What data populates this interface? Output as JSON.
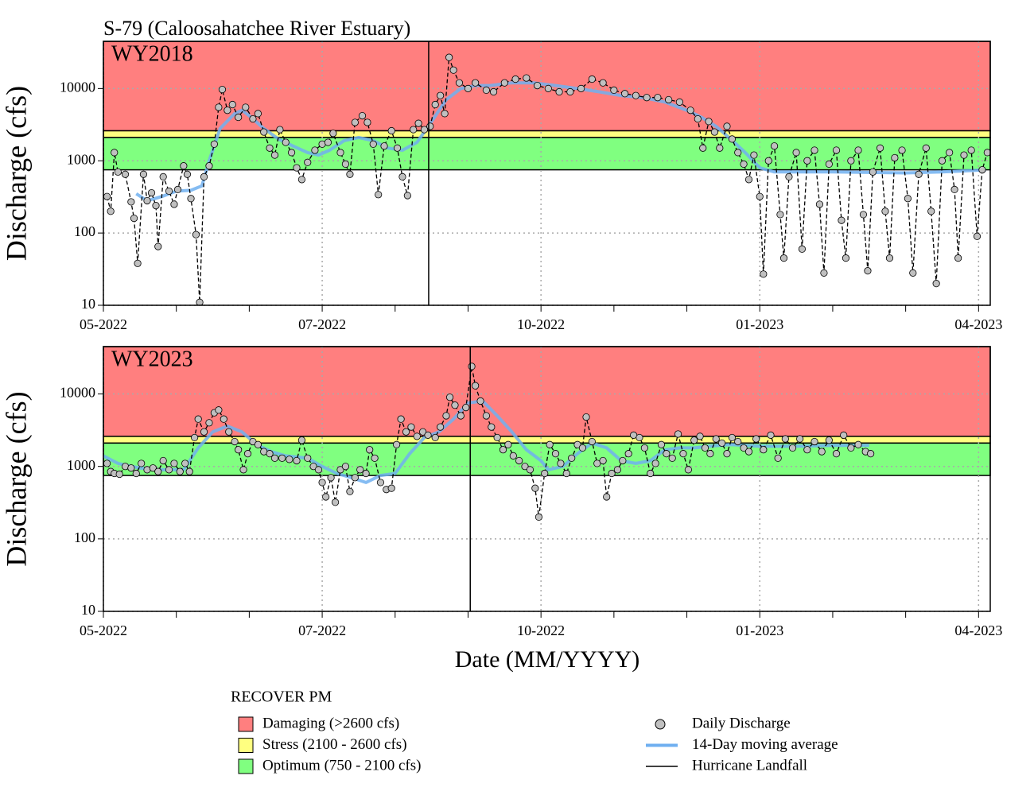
{
  "title": "S-79 (Caloosahatchee River Estuary)",
  "x_label": "Date (MM/YYYY)",
  "legend": {
    "title": "RECOVER PM",
    "bands": [
      {
        "label": "Damaging (>2600 cfs)",
        "lower": 2600,
        "color": "#ff7f7f"
      },
      {
        "label": "Stress (2100 - 2600 cfs)",
        "lower": 2100,
        "upper": 2600,
        "color": "#ffff80"
      },
      {
        "label": "Optimum (750 - 2100 cfs)",
        "lower": 750,
        "upper": 2100,
        "color": "#80ff80"
      }
    ],
    "hurricane_label": "Hurricane Landfall",
    "hurricane_color": "#000000"
  },
  "chart_data": [
    {
      "type": "scatter",
      "panel_label": "WY2018",
      "y_label": "Discharge (cfs)",
      "log_y": true,
      "grid": true,
      "xlim": [
        0,
        12.16
      ],
      "ylim": [
        10,
        45000
      ],
      "xticks": [
        {
          "value": 0,
          "label": "05-2022"
        },
        {
          "value": 3,
          "label": "07-2022"
        },
        {
          "value": 6,
          "label": "10-2022"
        },
        {
          "value": 9,
          "label": "01-2023"
        },
        {
          "value": 12,
          "label": "04-2023"
        }
      ],
      "xminorticks": [
        1,
        2,
        4,
        5,
        7,
        8,
        10,
        11
      ],
      "yticks": [
        10,
        100,
        1000,
        10000
      ],
      "hurricane_x": 4.46,
      "series": [
        {
          "name": "Daily Discharge",
          "color": "#c0c0c0",
          "line": "dashed",
          "x": [
            0.05,
            0.1,
            0.15,
            0.2,
            0.3,
            0.38,
            0.42,
            0.47,
            0.55,
            0.6,
            0.66,
            0.72,
            0.75,
            0.82,
            0.9,
            0.97,
            1.02,
            1.1,
            1.15,
            1.2,
            1.27,
            1.32,
            1.38,
            1.45,
            1.52,
            1.58,
            1.63,
            1.7,
            1.77,
            1.85,
            1.95,
            2.05,
            2.12,
            2.2,
            2.28,
            2.35,
            2.42,
            2.5,
            2.58,
            2.65,
            2.72,
            2.8,
            2.9,
            3.0,
            3.08,
            3.15,
            3.25,
            3.32,
            3.38,
            3.45,
            3.55,
            3.62,
            3.7,
            3.77,
            3.85,
            3.95,
            4.03,
            4.1,
            4.17,
            4.25,
            4.32,
            4.4,
            4.48,
            4.55,
            4.62,
            4.68,
            4.74,
            4.8,
            4.88,
            5.0,
            5.1,
            5.25,
            5.35,
            5.5,
            5.65,
            5.8,
            5.95,
            6.1,
            6.25,
            6.4,
            6.55,
            6.7,
            6.85,
            7.0,
            7.15,
            7.3,
            7.45,
            7.6,
            7.75,
            7.9,
            8.05,
            8.15,
            8.22,
            8.3,
            8.38,
            8.45,
            8.55,
            8.62,
            8.7,
            8.78,
            8.85,
            8.92,
            9.0,
            9.05,
            9.12,
            9.2,
            9.28,
            9.33,
            9.4,
            9.5,
            9.58,
            9.65,
            9.75,
            9.82,
            9.88,
            9.95,
            10.05,
            10.12,
            10.18,
            10.25,
            10.35,
            10.42,
            10.48,
            10.55,
            10.65,
            10.72,
            10.78,
            10.85,
            10.95,
            11.03,
            11.1,
            11.18,
            11.28,
            11.35,
            11.42,
            11.5,
            11.6,
            11.67,
            11.72,
            11.8,
            11.9,
            11.98,
            12.05,
            12.12
          ],
          "values": [
            320,
            200,
            1300,
            700,
            650,
            270,
            160,
            38,
            650,
            280,
            360,
            240,
            65,
            600,
            380,
            250,
            400,
            850,
            650,
            300,
            95,
            11,
            600,
            850,
            1700,
            5500,
            9700,
            5000,
            6000,
            4000,
            5500,
            3800,
            4500,
            2500,
            1500,
            1200,
            2700,
            1800,
            1300,
            800,
            550,
            950,
            1400,
            1700,
            1800,
            2400,
            1300,
            900,
            650,
            3400,
            4200,
            3400,
            1700,
            340,
            1600,
            2600,
            1500,
            600,
            330,
            2700,
            3300,
            2700,
            3000,
            6000,
            8000,
            4500,
            27000,
            18000,
            12000,
            10000,
            12000,
            9500,
            9000,
            12000,
            13500,
            14000,
            11000,
            10000,
            9000,
            9000,
            10000,
            13500,
            12000,
            9500,
            8500,
            8000,
            7500,
            7500,
            7000,
            6500,
            5000,
            3800,
            1500,
            3500,
            2500,
            1500,
            3000,
            2000,
            1300,
            900,
            550,
            1200,
            320,
            27,
            1000,
            1600,
            180,
            45,
            600,
            1300,
            60,
            1000,
            1400,
            250,
            28,
            900,
            1400,
            150,
            45,
            1000,
            1400,
            180,
            30,
            700,
            1500,
            200,
            45,
            1100,
            1400,
            300,
            28,
            650,
            1500,
            200,
            20,
            1000,
            1300,
            400,
            45,
            1200,
            1400,
            90,
            750,
            1300
          ]
        },
        {
          "name": "14-Day moving average",
          "color": "#70b0f0",
          "line_width": 4,
          "x": [
            0.45,
            0.6,
            0.8,
            1.0,
            1.2,
            1.35,
            1.45,
            1.6,
            1.8,
            1.9,
            2.0,
            2.2,
            2.4,
            2.6,
            2.8,
            2.95,
            3.1,
            3.3,
            3.5,
            3.7,
            3.9,
            4.1,
            4.3,
            4.5,
            4.7,
            4.9,
            5.1,
            5.3,
            5.6,
            5.9,
            6.2,
            6.5,
            6.8,
            7.1,
            7.4,
            7.7,
            8.0,
            8.2,
            8.4,
            8.6,
            8.8,
            9.0,
            9.2,
            9.5,
            10.0,
            10.5,
            11.0,
            11.5,
            12.1
          ],
          "values": [
            350,
            280,
            320,
            380,
            390,
            450,
            1000,
            2800,
            4500,
            5000,
            4200,
            2800,
            2000,
            1600,
            1300,
            1200,
            1400,
            1900,
            2100,
            1900,
            1500,
            1400,
            1800,
            3500,
            7000,
            10000,
            11000,
            11000,
            12000,
            12000,
            11000,
            10000,
            9000,
            8000,
            7500,
            6500,
            5000,
            4000,
            3000,
            2000,
            1300,
            800,
            700,
            700,
            700,
            690,
            680,
            700,
            750
          ]
        }
      ]
    },
    {
      "type": "scatter",
      "panel_label": "WY2023",
      "y_label": "Discharge (cfs)",
      "log_y": true,
      "grid": true,
      "xlim": [
        0,
        12.16
      ],
      "ylim": [
        10,
        45000
      ],
      "xticks": [
        {
          "value": 0,
          "label": "05-2022"
        },
        {
          "value": 3,
          "label": "07-2022"
        },
        {
          "value": 6,
          "label": "10-2022"
        },
        {
          "value": 9,
          "label": "01-2023"
        },
        {
          "value": 12,
          "label": "04-2023"
        }
      ],
      "xminorticks": [
        1,
        2,
        4,
        5,
        7,
        8,
        10,
        11
      ],
      "yticks": [
        10,
        100,
        1000,
        10000
      ],
      "hurricane_x": 5.03,
      "series": [
        {
          "name": "Daily Discharge",
          "color": "#c0c0c0",
          "line": "dashed",
          "x": [
            0.05,
            0.1,
            0.15,
            0.22,
            0.3,
            0.38,
            0.45,
            0.52,
            0.6,
            0.68,
            0.75,
            0.82,
            0.9,
            0.97,
            1.05,
            1.12,
            1.18,
            1.25,
            1.3,
            1.38,
            1.45,
            1.52,
            1.58,
            1.65,
            1.72,
            1.8,
            1.85,
            1.92,
            1.98,
            2.05,
            2.12,
            2.2,
            2.28,
            2.35,
            2.45,
            2.55,
            2.65,
            2.72,
            2.8,
            2.88,
            2.95,
            3.0,
            3.05,
            3.12,
            3.18,
            3.25,
            3.32,
            3.38,
            3.45,
            3.52,
            3.6,
            3.65,
            3.72,
            3.8,
            3.88,
            3.95,
            4.02,
            4.08,
            4.15,
            4.22,
            4.3,
            4.38,
            4.45,
            4.55,
            4.62,
            4.7,
            4.75,
            4.82,
            4.9,
            4.97,
            5.05,
            5.1,
            5.17,
            5.25,
            5.32,
            5.4,
            5.48,
            5.55,
            5.62,
            5.7,
            5.78,
            5.85,
            5.92,
            5.97,
            6.05,
            6.12,
            6.2,
            6.27,
            6.35,
            6.42,
            6.5,
            6.57,
            6.62,
            6.7,
            6.77,
            6.85,
            6.9,
            6.97,
            7.05,
            7.12,
            7.2,
            7.27,
            7.35,
            7.42,
            7.5,
            7.57,
            7.65,
            7.72,
            7.8,
            7.88,
            7.95,
            8.02,
            8.1,
            8.18,
            8.25,
            8.32,
            8.4,
            8.48,
            8.55,
            8.62,
            8.7,
            8.78,
            8.85,
            8.95,
            9.05,
            9.15,
            9.25,
            9.35,
            9.45,
            9.55,
            9.65,
            9.75,
            9.85,
            9.95,
            10.05,
            10.15,
            10.25,
            10.35,
            10.45,
            10.52
          ],
          "values": [
            1100,
            850,
            800,
            780,
            1000,
            950,
            800,
            1100,
            900,
            950,
            850,
            1200,
            900,
            1100,
            850,
            1100,
            850,
            2500,
            4500,
            3000,
            4000,
            5500,
            6000,
            4500,
            3000,
            2200,
            1700,
            900,
            1500,
            2200,
            2000,
            1600,
            1500,
            1300,
            1300,
            1250,
            1200,
            2300,
            1300,
            1000,
            900,
            600,
            380,
            700,
            320,
            900,
            1000,
            450,
            700,
            900,
            800,
            1700,
            1300,
            600,
            480,
            500,
            2000,
            4500,
            3000,
            3500,
            2600,
            3000,
            2700,
            2500,
            3500,
            5000,
            9000,
            7000,
            5000,
            6500,
            24000,
            13000,
            8000,
            5000,
            3500,
            2500,
            1700,
            2000,
            1400,
            1200,
            1000,
            900,
            500,
            200,
            800,
            2000,
            1500,
            1100,
            800,
            1300,
            2000,
            1800,
            4800,
            2200,
            1100,
            1200,
            380,
            800,
            900,
            1200,
            1500,
            2700,
            2500,
            1800,
            800,
            1100,
            2000,
            1500,
            1300,
            2800,
            1500,
            900,
            2300,
            2600,
            1800,
            1500,
            2400,
            2100,
            1500,
            2500,
            2200,
            1800,
            1600,
            2400,
            1700,
            2700,
            1300,
            2400,
            1800,
            2400,
            1700,
            2200,
            1600,
            2300,
            1500,
            2700,
            1800,
            2000,
            1600,
            1500
          ]
        },
        {
          "name": "14-Day moving average",
          "color": "#70b0f0",
          "line_width": 4,
          "x": [
            0.0,
            0.2,
            0.5,
            0.8,
            1.1,
            1.3,
            1.5,
            1.7,
            1.9,
            2.1,
            2.3,
            2.5,
            2.8,
            3.0,
            3.2,
            3.4,
            3.6,
            3.8,
            4.0,
            4.2,
            4.4,
            4.6,
            4.8,
            5.0,
            5.2,
            5.4,
            5.6,
            5.8,
            6.0,
            6.1,
            6.3,
            6.5,
            6.7,
            6.9,
            7.1,
            7.3,
            7.5,
            7.7,
            7.9,
            8.1,
            8.3,
            8.6,
            9.0,
            9.5,
            10.0,
            10.5
          ],
          "values": [
            1400,
            1100,
            950,
            900,
            900,
            1800,
            3000,
            3600,
            3000,
            2000,
            1600,
            1400,
            1300,
            1000,
            800,
            700,
            600,
            750,
            800,
            1500,
            2500,
            3000,
            4500,
            7500,
            8000,
            5000,
            3000,
            1700,
            1200,
            900,
            1000,
            1500,
            2100,
            1800,
            1200,
            1100,
            1200,
            1700,
            1800,
            1800,
            1900,
            2000,
            1900,
            1900,
            1950,
            1950
          ]
        }
      ]
    }
  ]
}
